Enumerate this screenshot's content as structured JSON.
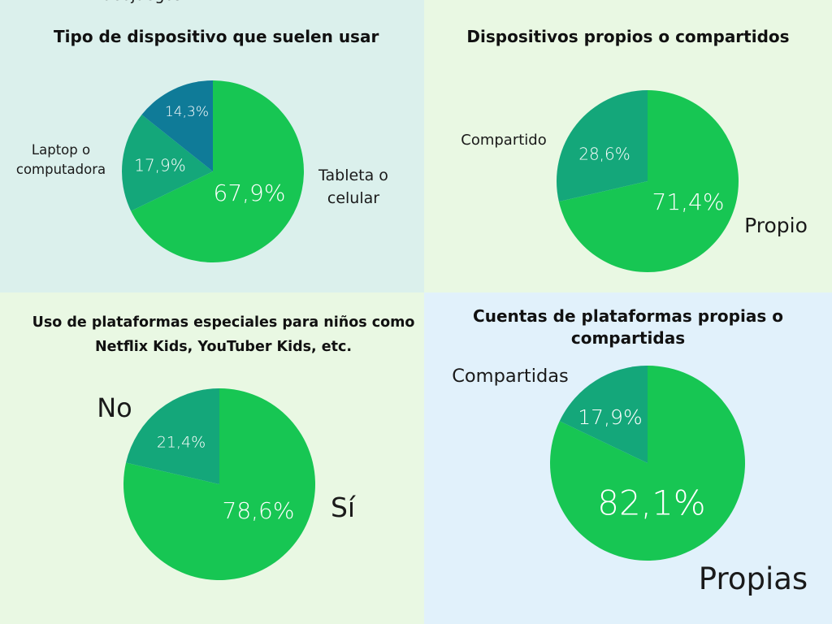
{
  "colors": {
    "tablet": "#17c653",
    "laptop": "#14a77a",
    "video": "#0f7b98"
  },
  "chart_data": [
    {
      "type": "pie",
      "title": "Tipo de dispositivo que suelen usar",
      "background": "#dbf0ec",
      "slices": [
        {
          "label": "Tableta o celular",
          "value": 67.9,
          "text": "67,9%",
          "color": "#17c653"
        },
        {
          "label": "Laptop o computadora",
          "value": 17.9,
          "text": "17,9%",
          "color": "#14a77a"
        },
        {
          "label": "Videojuegos",
          "value": 14.3,
          "text": "14,3%",
          "color": "#0f7b98"
        }
      ]
    },
    {
      "type": "pie",
      "title": "Dispositivos propios o compartidos",
      "background": "#e9f8e3",
      "slices": [
        {
          "label": "Propio",
          "value": 71.4,
          "text": "71,4%",
          "color": "#17c653"
        },
        {
          "label": "Compartido",
          "value": 28.6,
          "text": "28,6%",
          "color": "#14a77a"
        }
      ]
    },
    {
      "type": "pie",
      "title": "Uso de plataformas especiales para niños como Netflix Kids, YouTuber Kids, etc.",
      "background": "#e9f8e3",
      "slices": [
        {
          "label": "Sí",
          "value": 78.6,
          "text": "78,6%",
          "color": "#17c653"
        },
        {
          "label": "No",
          "value": 21.4,
          "text": "21,4%",
          "color": "#14a77a"
        }
      ]
    },
    {
      "type": "pie",
      "title": "Cuentas de plataformas propias o compartidas",
      "background": "#e1f1fb",
      "slices": [
        {
          "label": "Propias",
          "value": 82.1,
          "text": "82,1%",
          "color": "#17c653"
        },
        {
          "label": "Compartidas",
          "value": 17.9,
          "text": "17,9%",
          "color": "#14a77a"
        }
      ]
    }
  ]
}
